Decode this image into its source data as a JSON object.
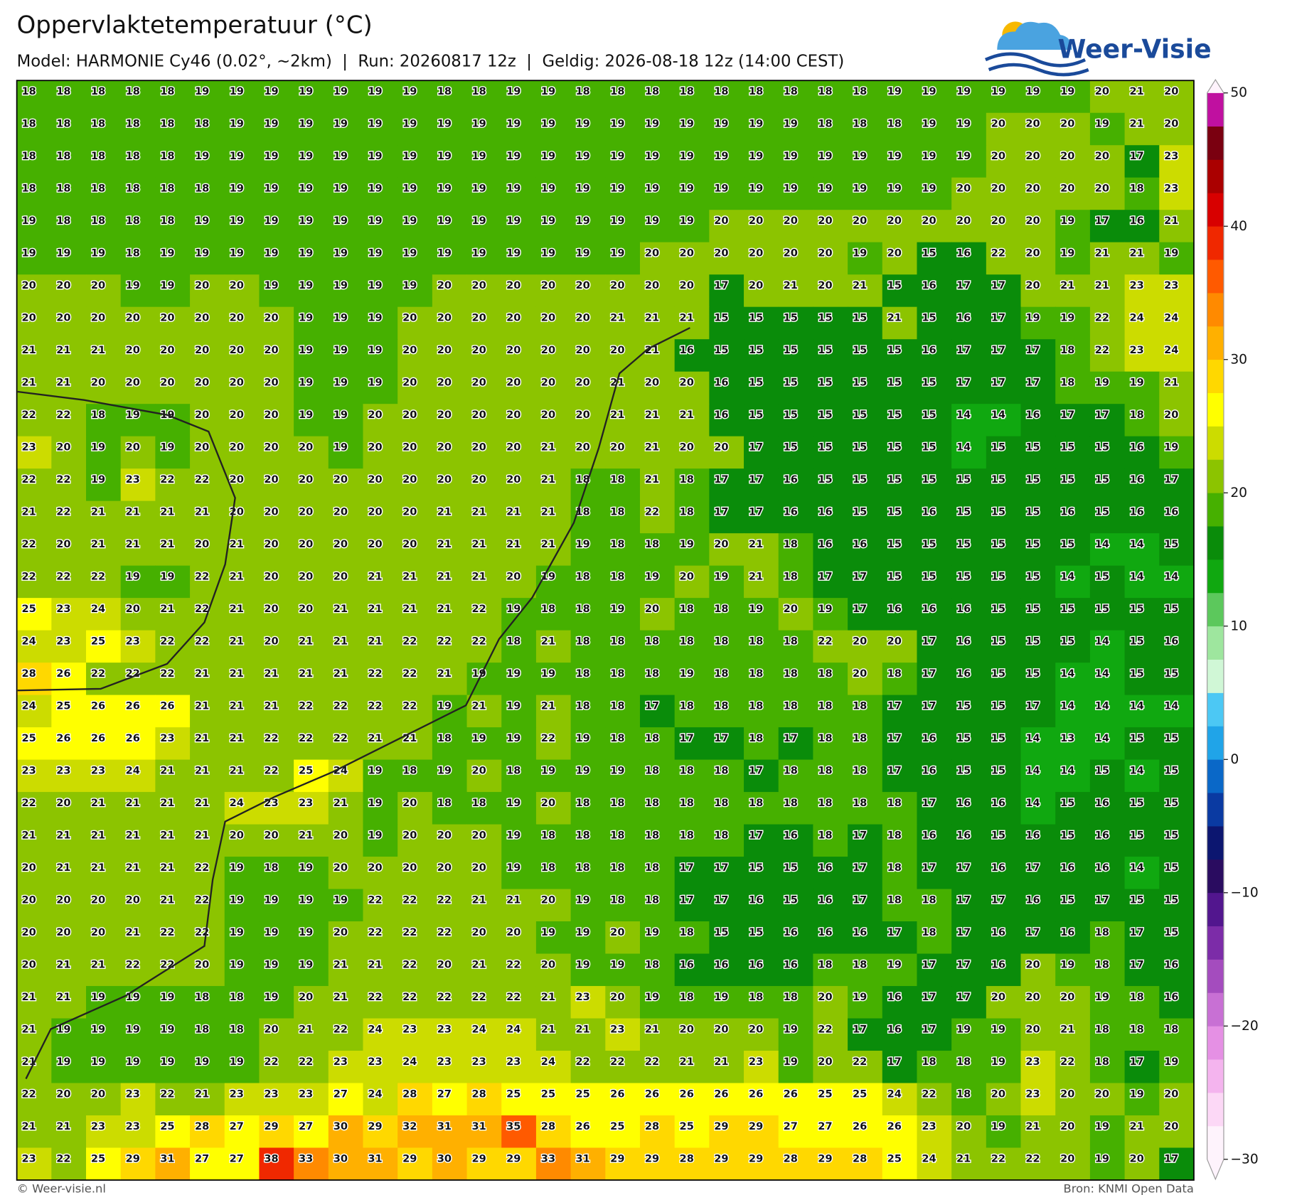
{
  "header": {
    "title": "Oppervlaktetemperatuur (°C)",
    "subtitle": "Model: HARMONIE Cy46 (0.02°, ~2km)  |  Run: 20260817 12z  |  Geldig: 2026-08-18 12z (14:00 CEST)"
  },
  "logo": {
    "text": "Weer-Visie"
  },
  "map": {
    "grid": [
      [
        18,
        18,
        18,
        18,
        18,
        19,
        19,
        19,
        19,
        19,
        19,
        19,
        18,
        18,
        19,
        19,
        18,
        18,
        18,
        18,
        18,
        18,
        18,
        18,
        18,
        19,
        19,
        19,
        19,
        19,
        19,
        20,
        21,
        20
      ],
      [
        18,
        18,
        18,
        18,
        18,
        18,
        19,
        19,
        19,
        19,
        19,
        19,
        19,
        19,
        19,
        19,
        19,
        19,
        19,
        19,
        19,
        19,
        19,
        18,
        18,
        18,
        19,
        19,
        20,
        20,
        20,
        19,
        21,
        20
      ],
      [
        18,
        18,
        18,
        18,
        18,
        19,
        19,
        19,
        19,
        19,
        19,
        19,
        19,
        19,
        19,
        19,
        19,
        19,
        19,
        19,
        19,
        19,
        19,
        19,
        19,
        19,
        19,
        19,
        20,
        20,
        20,
        20,
        17,
        23
      ],
      [
        18,
        18,
        18,
        18,
        18,
        18,
        19,
        19,
        19,
        19,
        19,
        19,
        19,
        19,
        19,
        19,
        19,
        19,
        19,
        19,
        19,
        19,
        19,
        19,
        19,
        19,
        19,
        20,
        20,
        20,
        20,
        20,
        18,
        23
      ],
      [
        19,
        18,
        18,
        18,
        18,
        19,
        19,
        19,
        19,
        19,
        19,
        19,
        19,
        19,
        19,
        19,
        19,
        19,
        19,
        19,
        20,
        20,
        20,
        20,
        20,
        20,
        20,
        20,
        20,
        20,
        19,
        17,
        16,
        21
      ],
      [
        19,
        19,
        19,
        18,
        19,
        19,
        19,
        19,
        19,
        19,
        19,
        19,
        19,
        19,
        19,
        19,
        19,
        19,
        20,
        20,
        20,
        20,
        20,
        20,
        19,
        20,
        15,
        16,
        22,
        20,
        19,
        21,
        21,
        19
      ],
      [
        20,
        20,
        20,
        19,
        19,
        20,
        20,
        19,
        19,
        19,
        19,
        19,
        20,
        20,
        20,
        20,
        20,
        20,
        20,
        20,
        17,
        20,
        21,
        20,
        21,
        15,
        16,
        17,
        17,
        20,
        21,
        21,
        23,
        23
      ],
      [
        20,
        20,
        20,
        20,
        20,
        20,
        20,
        20,
        19,
        19,
        19,
        20,
        20,
        20,
        20,
        20,
        20,
        21,
        21,
        21,
        15,
        15,
        15,
        15,
        15,
        21,
        15,
        16,
        17,
        19,
        19,
        22,
        24,
        24
      ],
      [
        21,
        21,
        21,
        20,
        20,
        20,
        20,
        20,
        19,
        19,
        19,
        20,
        20,
        20,
        20,
        20,
        20,
        20,
        21,
        16,
        15,
        15,
        15,
        15,
        15,
        15,
        16,
        17,
        17,
        17,
        18,
        22,
        23,
        24
      ],
      [
        21,
        21,
        20,
        20,
        20,
        20,
        20,
        20,
        19,
        19,
        19,
        20,
        20,
        20,
        20,
        20,
        20,
        21,
        20,
        20,
        16,
        15,
        15,
        15,
        15,
        15,
        15,
        17,
        17,
        17,
        18,
        19,
        19,
        21
      ],
      [
        22,
        22,
        18,
        19,
        19,
        20,
        20,
        20,
        19,
        19,
        20,
        20,
        20,
        20,
        20,
        20,
        20,
        21,
        21,
        21,
        16,
        15,
        15,
        15,
        15,
        15,
        15,
        14,
        14,
        16,
        17,
        17,
        18,
        20
      ],
      [
        23,
        20,
        19,
        20,
        19,
        20,
        20,
        20,
        20,
        19,
        20,
        20,
        20,
        20,
        20,
        21,
        20,
        20,
        21,
        20,
        20,
        17,
        15,
        15,
        15,
        15,
        15,
        14,
        15,
        15,
        15,
        15,
        16,
        19
      ],
      [
        22,
        22,
        19,
        23,
        22,
        22,
        20,
        20,
        20,
        20,
        20,
        20,
        20,
        20,
        20,
        21,
        18,
        18,
        21,
        18,
        17,
        17,
        16,
        15,
        15,
        15,
        15,
        15,
        15,
        15,
        15,
        15,
        16,
        17
      ],
      [
        21,
        22,
        21,
        21,
        21,
        21,
        20,
        20,
        20,
        20,
        20,
        20,
        21,
        21,
        21,
        21,
        18,
        18,
        22,
        18,
        17,
        17,
        16,
        16,
        15,
        15,
        16,
        15,
        15,
        15,
        16,
        15,
        16,
        16
      ],
      [
        22,
        20,
        21,
        21,
        21,
        20,
        21,
        20,
        20,
        20,
        20,
        20,
        21,
        21,
        21,
        21,
        19,
        18,
        18,
        19,
        20,
        21,
        18,
        16,
        16,
        15,
        15,
        15,
        15,
        15,
        15,
        14,
        14,
        15
      ],
      [
        22,
        22,
        22,
        19,
        19,
        22,
        21,
        20,
        20,
        20,
        21,
        21,
        21,
        21,
        20,
        19,
        18,
        18,
        19,
        20,
        19,
        21,
        18,
        17,
        17,
        15,
        15,
        15,
        15,
        15,
        14,
        15,
        14,
        14
      ],
      [
        25,
        23,
        24,
        20,
        21,
        22,
        21,
        20,
        20,
        21,
        21,
        21,
        21,
        22,
        19,
        18,
        18,
        19,
        20,
        18,
        18,
        19,
        20,
        19,
        17,
        16,
        16,
        16,
        15,
        15,
        15,
        15,
        15,
        15
      ],
      [
        24,
        23,
        25,
        23,
        22,
        22,
        21,
        20,
        21,
        21,
        21,
        22,
        22,
        22,
        18,
        21,
        18,
        18,
        18,
        18,
        18,
        18,
        18,
        22,
        20,
        20,
        17,
        16,
        15,
        15,
        15,
        14,
        15,
        16
      ],
      [
        28,
        26,
        22,
        22,
        22,
        21,
        21,
        21,
        21,
        21,
        22,
        22,
        21,
        19,
        19,
        19,
        18,
        18,
        18,
        19,
        18,
        18,
        18,
        18,
        20,
        18,
        17,
        16,
        15,
        15,
        14,
        14,
        15,
        15
      ],
      [
        24,
        25,
        26,
        26,
        26,
        21,
        21,
        21,
        22,
        22,
        22,
        22,
        19,
        21,
        19,
        21,
        18,
        18,
        17,
        18,
        18,
        18,
        18,
        18,
        18,
        17,
        17,
        15,
        15,
        17,
        14,
        14,
        14,
        14
      ],
      [
        25,
        26,
        26,
        26,
        23,
        21,
        21,
        22,
        22,
        22,
        21,
        21,
        18,
        19,
        19,
        22,
        19,
        18,
        18,
        17,
        17,
        18,
        17,
        18,
        18,
        17,
        16,
        15,
        15,
        14,
        13,
        14,
        15,
        15
      ],
      [
        23,
        23,
        23,
        24,
        21,
        21,
        21,
        22,
        25,
        24,
        19,
        18,
        19,
        20,
        18,
        19,
        19,
        19,
        18,
        18,
        18,
        17,
        18,
        18,
        18,
        17,
        16,
        15,
        15,
        14,
        14,
        15,
        14,
        15
      ],
      [
        22,
        20,
        21,
        21,
        21,
        21,
        24,
        23,
        23,
        21,
        19,
        20,
        18,
        18,
        19,
        20,
        18,
        18,
        18,
        18,
        18,
        18,
        18,
        18,
        18,
        18,
        17,
        16,
        16,
        14,
        15,
        16,
        15,
        15
      ],
      [
        21,
        21,
        21,
        21,
        21,
        21,
        20,
        20,
        21,
        20,
        19,
        20,
        20,
        20,
        19,
        18,
        18,
        18,
        18,
        18,
        18,
        17,
        16,
        18,
        17,
        18,
        16,
        16,
        15,
        16,
        15,
        16,
        15,
        15
      ],
      [
        20,
        21,
        21,
        21,
        21,
        22,
        19,
        18,
        19,
        20,
        20,
        20,
        20,
        20,
        19,
        18,
        18,
        18,
        18,
        17,
        17,
        15,
        15,
        16,
        17,
        18,
        17,
        17,
        16,
        17,
        16,
        16,
        14,
        15
      ],
      [
        20,
        20,
        20,
        20,
        21,
        22,
        19,
        19,
        19,
        19,
        22,
        22,
        22,
        21,
        21,
        20,
        19,
        18,
        18,
        17,
        17,
        16,
        15,
        16,
        17,
        18,
        18,
        17,
        17,
        16,
        15,
        17,
        15,
        15
      ],
      [
        20,
        20,
        20,
        21,
        22,
        22,
        19,
        19,
        19,
        20,
        22,
        22,
        22,
        20,
        20,
        19,
        19,
        20,
        19,
        18,
        15,
        15,
        16,
        16,
        16,
        17,
        18,
        17,
        16,
        17,
        16,
        18,
        17,
        15
      ],
      [
        20,
        21,
        21,
        22,
        22,
        20,
        19,
        19,
        19,
        21,
        21,
        22,
        20,
        21,
        22,
        20,
        19,
        19,
        18,
        16,
        16,
        16,
        16,
        18,
        18,
        19,
        17,
        17,
        16,
        20,
        19,
        18,
        17,
        16
      ],
      [
        21,
        21,
        19,
        19,
        19,
        18,
        18,
        19,
        20,
        21,
        22,
        22,
        22,
        22,
        22,
        21,
        23,
        20,
        19,
        18,
        19,
        18,
        18,
        20,
        19,
        16,
        17,
        17,
        20,
        20,
        20,
        19,
        18,
        16
      ],
      [
        21,
        19,
        19,
        19,
        19,
        18,
        18,
        20,
        21,
        22,
        24,
        23,
        23,
        24,
        24,
        21,
        21,
        23,
        21,
        20,
        20,
        20,
        19,
        22,
        17,
        16,
        17,
        19,
        19,
        20,
        21,
        18,
        18,
        18
      ],
      [
        21,
        19,
        19,
        19,
        19,
        19,
        19,
        22,
        22,
        23,
        23,
        24,
        23,
        23,
        23,
        24,
        22,
        22,
        22,
        21,
        21,
        23,
        19,
        20,
        22,
        17,
        18,
        18,
        19,
        23,
        22,
        18,
        17,
        19
      ],
      [
        22,
        20,
        20,
        23,
        22,
        21,
        23,
        23,
        23,
        27,
        24,
        28,
        27,
        28,
        25,
        25,
        25,
        26,
        26,
        26,
        26,
        26,
        26,
        25,
        25,
        24,
        22,
        18,
        20,
        23,
        20,
        20,
        19,
        20
      ],
      [
        21,
        21,
        23,
        23,
        25,
        28,
        27,
        29,
        27,
        30,
        29,
        32,
        31,
        31,
        35,
        28,
        26,
        25,
        28,
        25,
        29,
        29,
        27,
        27,
        26,
        26,
        23,
        20,
        19,
        21,
        20,
        19,
        21,
        20
      ],
      [
        23,
        22,
        25,
        29,
        31,
        27,
        27,
        38,
        33,
        30,
        31,
        29,
        30,
        29,
        29,
        33,
        31,
        29,
        29,
        28,
        29,
        29,
        28,
        29,
        28,
        25,
        24,
        21,
        22,
        22,
        20,
        19,
        20,
        17
      ]
    ]
  },
  "colorbar": {
    "ticks": [
      50,
      40,
      30,
      20,
      10,
      0,
      {
        "value": -10,
        "label": "−10"
      },
      {
        "value": -20,
        "label": "−20"
      },
      {
        "value": -30,
        "label": "−30"
      }
    ],
    "colors": [
      "#fef3fc",
      "#fcd8f6",
      "#f4b4ee",
      "#e590e4",
      "#c870d4",
      "#a44cbe",
      "#7c2ca8",
      "#52168e",
      "#2a0c60",
      "#0c1670",
      "#0a3aa2",
      "#0a68c8",
      "#20a4e8",
      "#4cc8f4",
      "#d0f7d6",
      "#9ee69e",
      "#5cc85c",
      "#10a810",
      "#0a8c0a",
      "#46b000",
      "#8cc400",
      "#ccdc00",
      "#ffff00",
      "#ffd800",
      "#ffb000",
      "#ff8a00",
      "#ff5a00",
      "#f02800",
      "#d80000",
      "#aa0000",
      "#7a0010",
      "#c010a0"
    ]
  },
  "footer": {
    "left": "© Weer-visie.nl",
    "right": "Bron: KNMI Open Data"
  }
}
